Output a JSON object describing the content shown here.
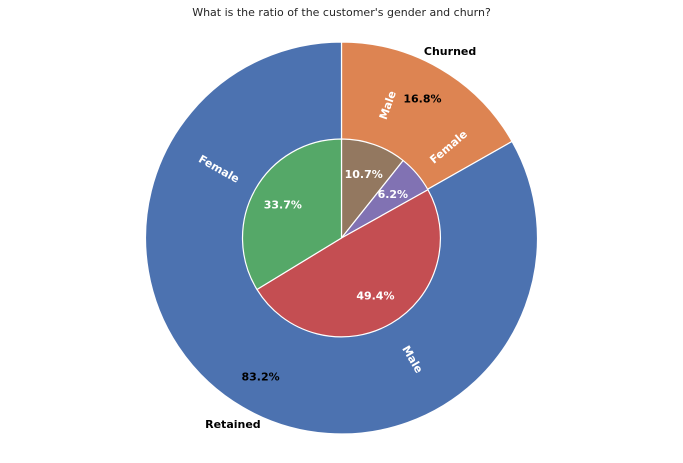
{
  "chart_data": {
    "type": "pie",
    "title": "What is the ratio of the customer's gender and churn?",
    "outer_ring": {
      "slices": [
        {
          "label": "Churned",
          "pct_label": "16.8%",
          "value": 16.8,
          "color": "#dd8452"
        },
        {
          "label": "Retained",
          "pct_label": "83.2%",
          "value": 83.2,
          "color": "#4c72b0"
        }
      ]
    },
    "inner_ring": {
      "slices": [
        {
          "label": "Male",
          "pct_label": "10.7%",
          "value": 10.7,
          "color": "#937860",
          "parent": "Churned"
        },
        {
          "label": "Female",
          "pct_label": "6.2%",
          "value": 6.2,
          "color": "#8172b3",
          "parent": "Churned"
        },
        {
          "label": "Male",
          "pct_label": "49.4%",
          "value": 49.4,
          "color": "#c44e52",
          "parent": "Retained"
        },
        {
          "label": "Female",
          "pct_label": "33.7%",
          "value": 33.7,
          "color": "#55a868",
          "parent": "Retained"
        }
      ]
    },
    "start": "top",
    "direction": "clockwise",
    "legend": "none"
  }
}
